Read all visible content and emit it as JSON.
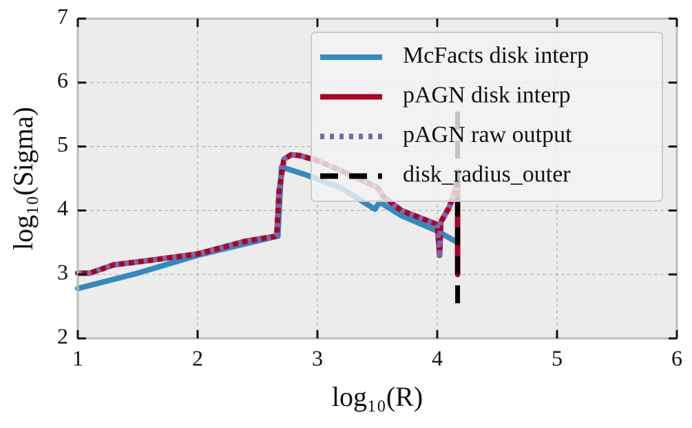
{
  "chart_data": {
    "type": "line",
    "x_label": "log₁₀(R)",
    "y_label": "log₁₀(Sigma)",
    "xlim": [
      1,
      6
    ],
    "ylim": [
      2,
      7
    ],
    "xticks": [
      1,
      2,
      3,
      4,
      5,
      6
    ],
    "yticks": [
      2,
      3,
      4,
      5,
      6,
      7
    ],
    "grid": true,
    "legend": "upper right",
    "series": [
      {
        "name": "McFacts disk interp",
        "color": "#348abd",
        "style": "solid",
        "x": [
          1,
          1.5,
          2,
          2.4,
          2.67,
          2.7,
          2.9,
          3.2,
          3.48,
          3.52,
          3.7,
          4.0,
          4.15
        ],
        "values": [
          2.78,
          3.02,
          3.3,
          3.48,
          3.6,
          4.68,
          4.56,
          4.35,
          4.02,
          4.13,
          3.92,
          3.68,
          3.52
        ]
      },
      {
        "name": "pAGN disk interp",
        "color": "#a60628",
        "style": "solid",
        "x": [
          1,
          1.1,
          1.3,
          1.6,
          2,
          2.4,
          2.66,
          2.68,
          2.72,
          2.78,
          2.85,
          3.0,
          3.2,
          3.5,
          3.55,
          3.7,
          4.0,
          4.02,
          4.03,
          4.1,
          4.15,
          4.17,
          4.17
        ],
        "values": [
          3.02,
          3.02,
          3.15,
          3.22,
          3.32,
          3.52,
          3.6,
          4.3,
          4.8,
          4.87,
          4.86,
          4.78,
          4.62,
          4.36,
          4.22,
          4.0,
          3.78,
          3.3,
          3.82,
          4.05,
          4.32,
          4.45,
          3.0
        ]
      },
      {
        "name": "pAGN raw output",
        "color": "#7a68a6",
        "style": "dotted",
        "x": [
          1,
          1.1,
          1.3,
          1.6,
          2,
          2.4,
          2.66,
          2.68,
          2.72,
          2.78,
          2.85,
          3.0,
          3.2,
          3.5,
          3.55,
          3.7,
          4.0,
          4.02,
          4.03,
          4.1,
          4.15,
          4.17
        ],
        "values": [
          3.02,
          3.02,
          3.15,
          3.22,
          3.32,
          3.52,
          3.6,
          4.3,
          4.8,
          4.87,
          4.86,
          4.78,
          4.62,
          4.36,
          4.22,
          4.0,
          3.78,
          3.25,
          3.82,
          4.05,
          4.32,
          4.45
        ]
      },
      {
        "name": "disk_radius_outer",
        "color": "#000000",
        "style": "dashed",
        "x": [
          4.17,
          4.17
        ],
        "values": [
          2.55,
          5.7
        ]
      }
    ]
  }
}
